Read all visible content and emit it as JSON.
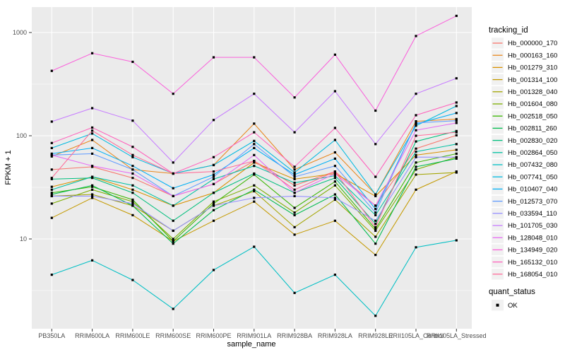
{
  "chart_data": {
    "type": "line",
    "title": "",
    "xlabel": "sample_name",
    "ylabel": "FPKM + 1",
    "y_scale": "log10",
    "ylim": [
      1.35,
      1800
    ],
    "y_ticks": [
      10,
      100,
      1000
    ],
    "y_minor_gridlines": [
      3.162,
      31.62,
      316.2
    ],
    "legend_position": "right",
    "grid": true,
    "point_marker": "black-square",
    "categories": [
      "PB350LA",
      "RRIM600LA",
      "RRIM600LE",
      "RRIM600SE",
      "RRIM600PE",
      "RRIM901LA",
      "RRIM928BA",
      "RRIM928LA",
      "RRIM928LE",
      "RRII105LA_Control",
      "RRII105LA_Stressed"
    ],
    "series": [
      {
        "name": "Hb_000000_170",
        "color": "#F8766D",
        "values": [
          47,
          50,
          39,
          26,
          34,
          57,
          33,
          45,
          21,
          75,
          101
        ]
      },
      {
        "name": "Hb_000163_160",
        "color": "#E8871E",
        "values": [
          63,
          91,
          47,
          43,
          52,
          131,
          47,
          69,
          27,
          138,
          145
        ]
      },
      {
        "name": "Hb_001279_310",
        "color": "#D89000",
        "values": [
          32,
          40,
          30,
          21,
          28,
          55,
          38,
          43,
          26,
          65,
          73
        ]
      },
      {
        "name": "Hb_001314_100",
        "color": "#C49A00",
        "values": [
          16,
          25,
          17,
          9.5,
          15,
          23,
          11,
          15,
          7,
          30,
          45
        ]
      },
      {
        "name": "Hb_001328_040",
        "color": "#A3A500",
        "values": [
          26,
          27,
          21,
          12,
          21,
          29,
          13,
          24,
          10.5,
          42,
          44
        ]
      },
      {
        "name": "Hb_001604_080",
        "color": "#7CAE00",
        "values": [
          22,
          30,
          23,
          10,
          23,
          33,
          18,
          33,
          12,
          47,
          62
        ]
      },
      {
        "name": "Hb_002518_050",
        "color": "#39B600",
        "values": [
          28,
          32,
          24,
          9.5,
          22,
          42,
          20,
          36,
          12.5,
          55,
          67
        ]
      },
      {
        "name": "Hb_002811_260",
        "color": "#00BB4E",
        "values": [
          27,
          33,
          21,
          9,
          19,
          30,
          17,
          27,
          9,
          50,
          60
        ]
      },
      {
        "name": "Hb_002830_020",
        "color": "#00BF7D",
        "values": [
          38,
          39,
          28,
          15,
          28,
          43,
          28,
          39,
          14,
          88,
          111
        ]
      },
      {
        "name": "Hb_002864_050",
        "color": "#00C1A3",
        "values": [
          30,
          40,
          33,
          21,
          38,
          51,
          35,
          41,
          17,
          70,
          83
        ]
      },
      {
        "name": "Hb_007432_080",
        "color": "#00BFC4",
        "values": [
          4.5,
          6.2,
          4.0,
          2.1,
          5.0,
          8.4,
          3.0,
          4.5,
          1.8,
          8.3,
          9.7
        ]
      },
      {
        "name": "Hb_007741_050",
        "color": "#00BAE0",
        "values": [
          76,
          105,
          62,
          43,
          52,
          89,
          44,
          91,
          27,
          125,
          194
        ]
      },
      {
        "name": "Hb_010407_040",
        "color": "#00B0F6",
        "values": [
          67,
          76,
          51,
          31,
          42,
          76,
          42,
          60,
          19.5,
          130,
          166
        ]
      },
      {
        "name": "Hb_012573_070",
        "color": "#619CFF",
        "values": [
          65,
          67,
          47,
          26,
          40,
          83,
          40,
          51,
          18,
          133,
          140
        ]
      },
      {
        "name": "Hb_033594_110",
        "color": "#9590FF",
        "values": [
          26,
          26,
          22,
          12,
          21,
          25,
          26,
          25,
          15,
          62,
          62
        ]
      },
      {
        "name": "Hb_101705_030",
        "color": "#C77CFF",
        "values": [
          137,
          185,
          140,
          55,
          142,
          255,
          108,
          270,
          83,
          255,
          360
        ]
      },
      {
        "name": "Hb_128048_010",
        "color": "#E76BF3",
        "values": [
          65,
          51,
          43,
          26,
          34,
          65,
          28,
          43,
          21,
          113,
          133
        ]
      },
      {
        "name": "Hb_134949_020",
        "color": "#FA62DB",
        "values": [
          425,
          630,
          520,
          255,
          575,
          575,
          235,
          610,
          175,
          925,
          1450
        ]
      },
      {
        "name": "Hb_165132_010",
        "color": "#FF62BC",
        "values": [
          85,
          120,
          78,
          43,
          62,
          108,
          50,
          119,
          40,
          158,
          210
        ]
      },
      {
        "name": "Hb_168054_010",
        "color": "#FF6A98",
        "values": [
          39,
          112,
          65,
          43,
          45,
          57,
          30,
          45,
          13,
          100,
          108
        ]
      }
    ]
  },
  "legend": {
    "tracking_title": "tracking_id",
    "quant_title": "quant_status",
    "quant_items": [
      {
        "label": "OK",
        "marker": "black-square"
      }
    ]
  },
  "style": {
    "panel_background": "#EBEBEB",
    "gridline_color": "#FFFFFF",
    "tick_color": "#333333",
    "tick_label_color": "#4D4D4D",
    "axis_title_color": "#000000",
    "point_color": "#000000",
    "legend_key_background": "#F1F1F1"
  }
}
